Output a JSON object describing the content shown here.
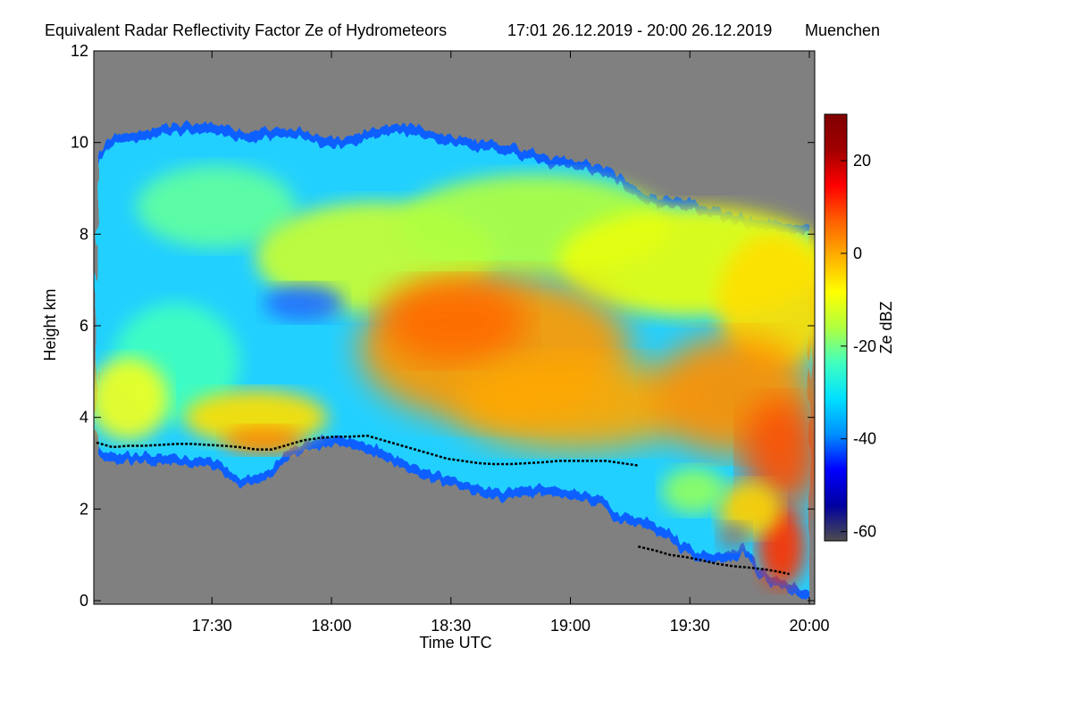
{
  "chart_data": {
    "type": "heatmap",
    "title": "Equivalent Radar Reflectivity Factor Ze of Hydrometeors",
    "time_range": "17:01 26.12.2019 - 20:00 26.12.2019",
    "location": "Muenchen",
    "xlabel": "Time UTC",
    "ylabel": "Height km",
    "colorbar_label": "Ze dBZ",
    "x_range_minutes": [
      0,
      179
    ],
    "xticks": [
      {
        "label": "17:30",
        "minute": 29
      },
      {
        "label": "18:00",
        "minute": 59
      },
      {
        "label": "18:30",
        "minute": 89
      },
      {
        "label": "19:00",
        "minute": 119
      },
      {
        "label": "19:30",
        "minute": 149
      },
      {
        "label": "20:00",
        "minute": 179
      }
    ],
    "ylim": [
      0,
      12
    ],
    "yticks": [
      0,
      2,
      4,
      6,
      8,
      10,
      12
    ],
    "colorbar_range": [
      -62,
      30
    ],
    "colorbar_ticks": [
      -60,
      -40,
      -20,
      0,
      20
    ],
    "colors": {
      "no_signal": "#808080",
      "colormap": [
        "#4d4d4d",
        "#0000a0",
        "#0000ff",
        "#0090ff",
        "#00e0ff",
        "#40ffc0",
        "#b0ff40",
        "#ffff00",
        "#ffb000",
        "#ff6000",
        "#ff0000",
        "#a00000",
        "#800000"
      ]
    },
    "series": [
      {
        "name": "echo top height",
        "minutes": [
          0,
          3,
          6,
          10,
          14,
          18,
          22,
          26,
          30,
          34,
          38,
          42,
          46,
          50,
          54,
          58,
          62,
          66,
          70,
          74,
          78,
          82,
          86,
          90,
          94,
          98,
          102,
          106,
          110,
          114,
          118,
          122,
          126,
          130,
          134,
          138,
          142,
          146,
          150,
          154,
          158,
          162,
          166,
          170,
          174,
          179
        ],
        "height_km": [
          9.7,
          10.1,
          10.2,
          10.2,
          10.3,
          10.4,
          10.4,
          10.4,
          10.4,
          10.3,
          10.2,
          10.3,
          10.3,
          10.3,
          10.2,
          10.1,
          10.1,
          10.2,
          10.3,
          10.4,
          10.4,
          10.3,
          10.2,
          10.1,
          10.1,
          10.0,
          10.0,
          9.9,
          9.8,
          9.7,
          9.7,
          9.6,
          9.5,
          9.4,
          9.1,
          8.9,
          8.8,
          8.8,
          8.7,
          8.6,
          8.5,
          8.4,
          8.3,
          8.3,
          8.2,
          8.2
        ]
      },
      {
        "name": "echo base height",
        "minutes": [
          0,
          6,
          12,
          18,
          24,
          30,
          36,
          42,
          48,
          54,
          60,
          66,
          72,
          78,
          84,
          90,
          96,
          102,
          108,
          114,
          120,
          126,
          132,
          138,
          144,
          150,
          156,
          162,
          168,
          174,
          179
        ],
        "height_km": [
          3.1,
          3.0,
          3.0,
          3.0,
          2.9,
          2.9,
          2.5,
          2.6,
          3.1,
          3.3,
          3.4,
          3.3,
          3.1,
          2.8,
          2.6,
          2.5,
          2.3,
          2.2,
          2.3,
          2.3,
          2.2,
          2.1,
          1.7,
          1.6,
          1.3,
          0.9,
          0.8,
          1.0,
          0.4,
          0.2,
          0.0
        ]
      },
      {
        "name": "melting layer (upper)",
        "minutes": [
          0,
          4,
          8,
          12,
          16,
          20,
          24,
          28,
          32,
          36,
          40,
          44,
          48,
          52,
          56,
          60,
          64,
          68,
          72,
          76,
          80,
          84,
          88,
          92,
          96,
          100,
          104,
          108,
          112,
          116,
          120,
          124,
          128,
          132,
          136
        ],
        "height_km": [
          3.45,
          3.35,
          3.38,
          3.38,
          3.4,
          3.42,
          3.42,
          3.4,
          3.38,
          3.35,
          3.3,
          3.3,
          3.4,
          3.5,
          3.55,
          3.58,
          3.58,
          3.6,
          3.5,
          3.4,
          3.3,
          3.2,
          3.1,
          3.05,
          3.0,
          2.98,
          2.98,
          3.0,
          3.02,
          3.05,
          3.05,
          3.05,
          3.05,
          3.0,
          2.95
        ]
      },
      {
        "name": "melting layer (lower)",
        "minutes": [
          136,
          140,
          144,
          148,
          152,
          156,
          160,
          164,
          168,
          172,
          174
        ],
        "height_km": [
          1.18,
          1.1,
          1.0,
          0.95,
          0.88,
          0.8,
          0.75,
          0.72,
          0.68,
          0.62,
          0.58
        ]
      }
    ]
  }
}
